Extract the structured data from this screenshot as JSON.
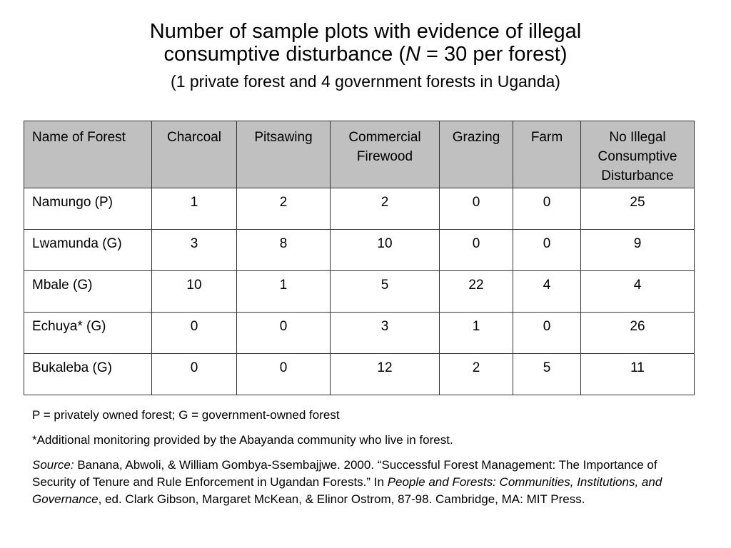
{
  "title": {
    "line1": "Number of sample plots with evidence of illegal",
    "line2_pre": "consumptive disturbance (",
    "line2_n": "N",
    "line2_post": " = 30 per forest)"
  },
  "subtitle": "(1 private forest and 4 government forests in Uganda)",
  "table": {
    "headers": [
      "Name of Forest",
      "Charcoal",
      "Pitsawing",
      "Commercial Firewood",
      "Grazing",
      "Farm",
      "No Illegal Consumptive Disturbance"
    ],
    "rows": [
      [
        "Namungo (P)",
        "1",
        "2",
        "2",
        "0",
        "0",
        "25"
      ],
      [
        "Lwamunda (G)",
        "3",
        "8",
        "10",
        "0",
        "0",
        "9"
      ],
      [
        "Mbale (G)",
        "10",
        "1",
        "5",
        "22",
        "4",
        "4"
      ],
      [
        "Echuya* (G)",
        "0",
        "0",
        "3",
        "1",
        "0",
        "26"
      ],
      [
        "Bukaleba (G)",
        "0",
        "0",
        "12",
        "2",
        "5",
        "11"
      ]
    ]
  },
  "notes": {
    "legend": "P = privately owned forest; G = government-owned forest",
    "footnote": "*Additional monitoring provided by the Abayanda community who live in forest.",
    "source_label": "Source:",
    "source_text_1": " Banana, Abwoli, & William Gombya-Ssembajjwe. 2000. “Successful Forest Management: The Importance of Security of Tenure and Rule Enforcement in Ugandan Forests.” In ",
    "source_book": "People and Forests: Communities, Institutions, and Governance",
    "source_text_2": ", ed. Clark Gibson, Margaret McKean, & Elinor Ostrom, 87-98. Cambridge, MA: MIT Press."
  },
  "colors": {
    "header_bg": "#c0c0c0",
    "border": "#333333"
  }
}
